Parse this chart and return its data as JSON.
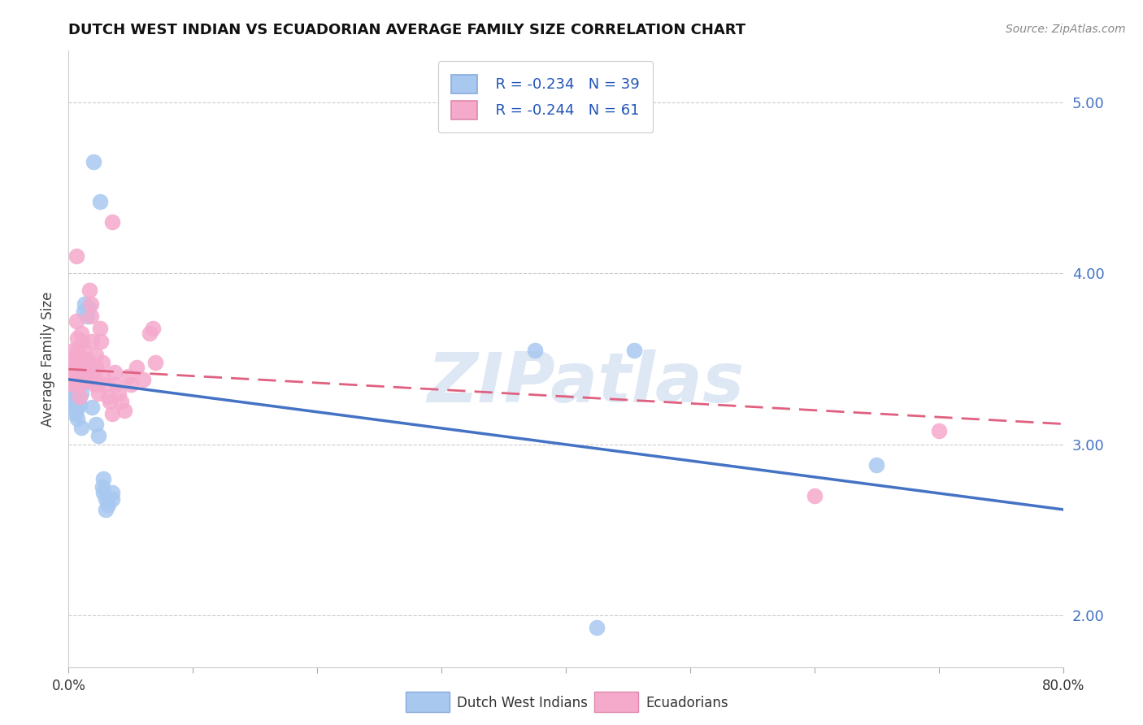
{
  "title": "DUTCH WEST INDIAN VS ECUADORIAN AVERAGE FAMILY SIZE CORRELATION CHART",
  "source": "Source: ZipAtlas.com",
  "ylabel": "Average Family Size",
  "yticks_right": [
    2.0,
    3.0,
    4.0,
    5.0
  ],
  "legend_blue_r": "R = -0.234",
  "legend_blue_n": "N = 39",
  "legend_pink_r": "R = -0.244",
  "legend_pink_n": "N = 61",
  "watermark": "ZIPatlas",
  "blue_color": "#A8C8F0",
  "pink_color": "#F5AACC",
  "blue_line_color": "#4472C4",
  "pink_line_color": "#E06080",
  "blue_scatter": [
    [
      0.001,
      3.33
    ],
    [
      0.002,
      3.29
    ],
    [
      0.003,
      3.44
    ],
    [
      0.004,
      3.35
    ],
    [
      0.004,
      3.25
    ],
    [
      0.005,
      3.22
    ],
    [
      0.005,
      3.18
    ],
    [
      0.006,
      3.31
    ],
    [
      0.006,
      3.2
    ],
    [
      0.007,
      3.26
    ],
    [
      0.007,
      3.15
    ],
    [
      0.008,
      3.28
    ],
    [
      0.009,
      3.23
    ],
    [
      0.01,
      3.3
    ],
    [
      0.01,
      3.1
    ],
    [
      0.011,
      3.4
    ],
    [
      0.012,
      3.78
    ],
    [
      0.013,
      3.82
    ],
    [
      0.015,
      3.75
    ],
    [
      0.016,
      3.8
    ],
    [
      0.017,
      3.37
    ],
    [
      0.018,
      3.45
    ],
    [
      0.019,
      3.22
    ],
    [
      0.02,
      4.65
    ],
    [
      0.022,
      3.12
    ],
    [
      0.024,
      3.05
    ],
    [
      0.025,
      4.42
    ],
    [
      0.027,
      2.75
    ],
    [
      0.028,
      2.8
    ],
    [
      0.028,
      2.72
    ],
    [
      0.03,
      2.68
    ],
    [
      0.03,
      2.62
    ],
    [
      0.032,
      2.65
    ],
    [
      0.035,
      2.72
    ],
    [
      0.035,
      2.68
    ],
    [
      0.375,
      3.55
    ],
    [
      0.455,
      3.55
    ],
    [
      0.65,
      2.88
    ],
    [
      0.425,
      1.93
    ]
  ],
  "pink_scatter": [
    [
      0.001,
      3.42
    ],
    [
      0.002,
      3.48
    ],
    [
      0.003,
      3.38
    ],
    [
      0.003,
      3.35
    ],
    [
      0.004,
      3.55
    ],
    [
      0.004,
      3.5
    ],
    [
      0.005,
      3.42
    ],
    [
      0.005,
      3.38
    ],
    [
      0.005,
      3.45
    ],
    [
      0.006,
      4.1
    ],
    [
      0.006,
      3.72
    ],
    [
      0.007,
      3.62
    ],
    [
      0.007,
      3.55
    ],
    [
      0.008,
      3.48
    ],
    [
      0.008,
      3.42
    ],
    [
      0.009,
      3.35
    ],
    [
      0.009,
      3.28
    ],
    [
      0.01,
      3.5
    ],
    [
      0.01,
      3.65
    ],
    [
      0.011,
      3.6
    ],
    [
      0.012,
      3.55
    ],
    [
      0.012,
      3.48
    ],
    [
      0.013,
      3.42
    ],
    [
      0.014,
      3.38
    ],
    [
      0.015,
      3.5
    ],
    [
      0.015,
      3.44
    ],
    [
      0.016,
      3.38
    ],
    [
      0.017,
      3.9
    ],
    [
      0.018,
      3.82
    ],
    [
      0.018,
      3.75
    ],
    [
      0.019,
      3.6
    ],
    [
      0.02,
      3.46
    ],
    [
      0.021,
      3.4
    ],
    [
      0.021,
      3.35
    ],
    [
      0.022,
      3.52
    ],
    [
      0.022,
      3.46
    ],
    [
      0.023,
      3.35
    ],
    [
      0.024,
      3.3
    ],
    [
      0.025,
      3.68
    ],
    [
      0.026,
      3.6
    ],
    [
      0.027,
      3.48
    ],
    [
      0.028,
      3.4
    ],
    [
      0.03,
      3.35
    ],
    [
      0.032,
      3.28
    ],
    [
      0.033,
      3.25
    ],
    [
      0.035,
      3.18
    ],
    [
      0.035,
      4.3
    ],
    [
      0.037,
      3.42
    ],
    [
      0.038,
      3.35
    ],
    [
      0.04,
      3.3
    ],
    [
      0.042,
      3.25
    ],
    [
      0.045,
      3.2
    ],
    [
      0.048,
      3.4
    ],
    [
      0.05,
      3.35
    ],
    [
      0.055,
      3.45
    ],
    [
      0.06,
      3.38
    ],
    [
      0.065,
      3.65
    ],
    [
      0.068,
      3.68
    ],
    [
      0.07,
      3.48
    ],
    [
      0.6,
      2.7
    ],
    [
      0.7,
      3.08
    ]
  ],
  "xmin": 0.0,
  "xmax": 0.8,
  "ymin": 1.7,
  "ymax": 5.3,
  "blue_trendline_x": [
    0.0,
    0.8
  ],
  "blue_trendline_y": [
    3.38,
    2.62
  ],
  "pink_trendline_x": [
    0.0,
    0.8
  ],
  "pink_trendline_y": [
    3.44,
    3.12
  ],
  "xtick_positions": [
    0.0,
    0.8
  ],
  "xtick_labels": [
    "0.0%",
    "80.0%"
  ]
}
